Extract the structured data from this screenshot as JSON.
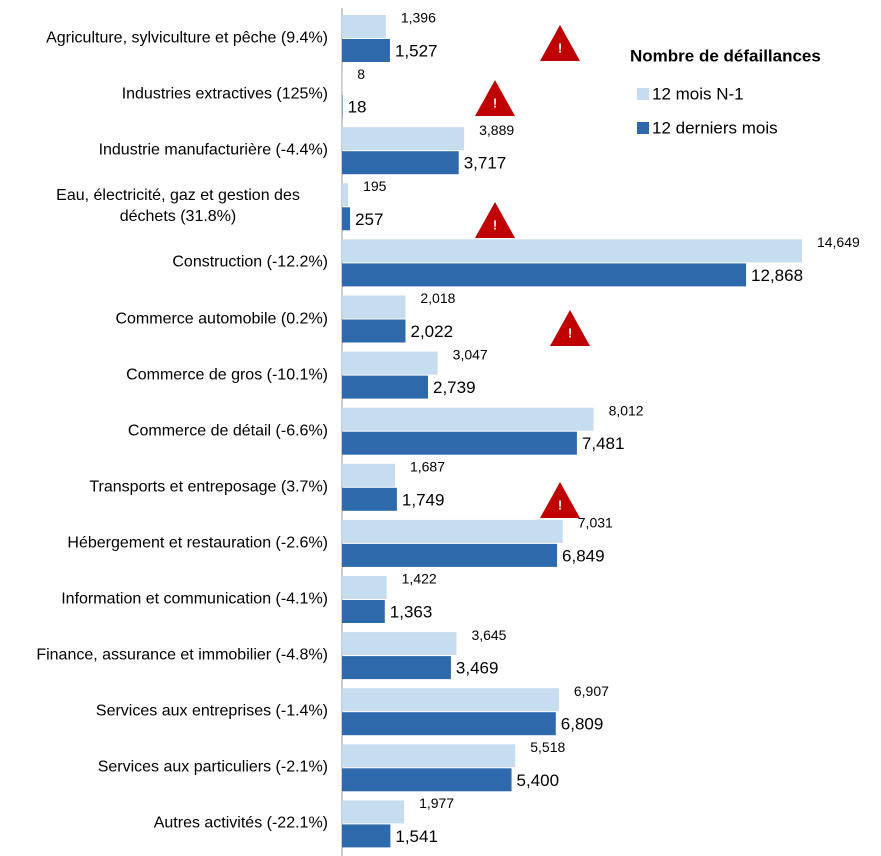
{
  "chart_data": {
    "type": "bar",
    "orientation": "horizontal",
    "legend_title": "Nombre de défaillances",
    "categories": [
      "Agriculture, sylviculture et pêche (9.4%)",
      "Industries extractives (125%)",
      "Industrie manufacturière (-4.4%)",
      "Eau, électricité, gaz et gestion des déchets (31.8%)",
      "Construction (-12.2%)",
      "Commerce automobile (0.2%)",
      "Commerce de gros (-10.1%)",
      "Commerce de détail (-6.6%)",
      "Transports et entreposage (3.7%)",
      "Hébergement et restauration (-2.6%)",
      "Information et communication (-4.1%)",
      "Finance, assurance et immobilier (-4.8%)",
      "Services aux entreprises (-1.4%)",
      "Services aux particuliers (-2.1%)",
      "Autres activités (-22.1%)"
    ],
    "series": [
      {
        "name": "12 mois N-1",
        "color": "#c6dcef",
        "values": [
          1396,
          8,
          3889,
          195,
          14649,
          2018,
          3047,
          8012,
          1687,
          7031,
          1422,
          3645,
          6907,
          5518,
          1977
        ],
        "value_labels": [
          "1,396",
          "8",
          "3,889",
          "195",
          "14,649",
          "2,018",
          "3,047",
          "8,012",
          "1,687",
          "7,031",
          "1,422",
          "3,645",
          "6,907",
          "5,518",
          "1,977"
        ]
      },
      {
        "name": "12 derniers mois",
        "color": "#2e6aab",
        "values": [
          1527,
          18,
          3717,
          257,
          12868,
          2022,
          2739,
          7481,
          1749,
          6849,
          1363,
          3469,
          6809,
          5400,
          1541
        ],
        "value_labels": [
          "1,527",
          "18",
          "3,717",
          "257",
          "12,868",
          "2,022",
          "2,739",
          "7,481",
          "1,749",
          "6,849",
          "1,363",
          "3,469",
          "6,809",
          "5,400",
          "1,541"
        ]
      }
    ],
    "xlim": [
      0,
      15000
    ]
  }
}
